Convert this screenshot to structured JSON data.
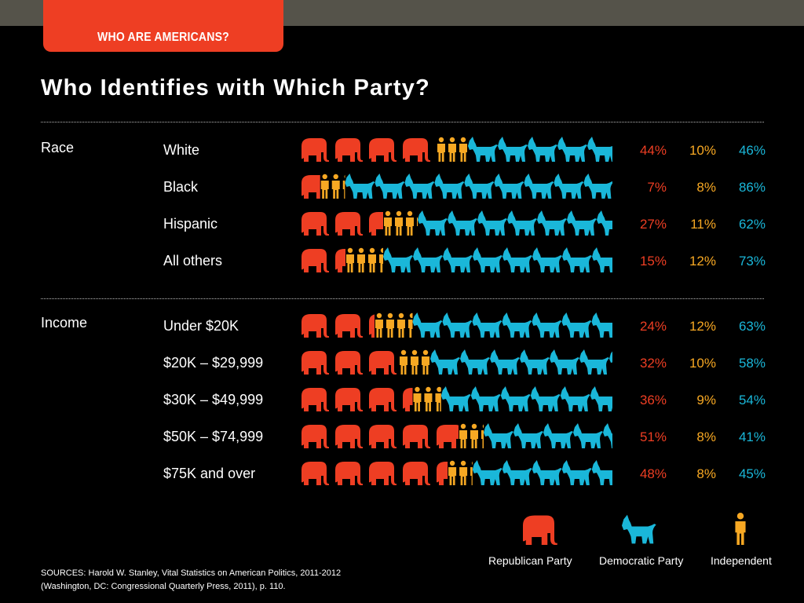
{
  "header": {
    "section_tab": "WHO ARE AMERICANS?",
    "title": "Who Identifies with Which Party?"
  },
  "colors": {
    "republican": "#ee3e23",
    "independent": "#f7a823",
    "democratic": "#1ab7d9",
    "tab": "#ee3e23",
    "topbar": "#55534a",
    "background": "#000000"
  },
  "icons": {
    "republican": "elephant-icon",
    "independent": "person-icon",
    "democratic": "donkey-icon"
  },
  "chart_data": {
    "type": "table",
    "series": [
      "Republican Party",
      "Independent",
      "Democratic Party"
    ],
    "groups": [
      {
        "label": "Race",
        "rows": [
          {
            "label": "White",
            "republican": 44,
            "independent": 10,
            "democratic": 46,
            "display": {
              "republican": "44%",
              "independent": "10%",
              "democratic": "46%"
            }
          },
          {
            "label": "Black",
            "republican": 7,
            "independent": 8,
            "democratic": 86,
            "display": {
              "republican": "7%",
              "independent": "8%",
              "democratic": "86%"
            }
          },
          {
            "label": "Hispanic",
            "republican": 27,
            "independent": 11,
            "democratic": 62,
            "display": {
              "republican": "27%",
              "independent": "11%",
              "democratic": "62%"
            }
          },
          {
            "label": "All others",
            "republican": 15,
            "independent": 12,
            "democratic": 73,
            "display": {
              "republican": "15%",
              "independent": "12%",
              "democratic": "73%"
            }
          }
        ]
      },
      {
        "label": "Income",
        "rows": [
          {
            "label": "Under $20K",
            "republican": 24,
            "independent": 12,
            "democratic": 63,
            "display": {
              "republican": "24%",
              "independent": "12%",
              "democratic": "63%"
            }
          },
          {
            "label": "$20K – $29,999",
            "republican": 32,
            "independent": 10,
            "democratic": 58,
            "display": {
              "republican": "32%",
              "independent": "10%",
              "democratic": "58%"
            }
          },
          {
            "label": "$30K – $49,999",
            "republican": 36,
            "independent": 9,
            "democratic": 54,
            "display": {
              "republican": "36%",
              "independent": "9%",
              "democratic": "54%"
            }
          },
          {
            "label": "$50K – $74,999",
            "republican": 51,
            "independent": 8,
            "democratic": 41,
            "display": {
              "republican": "51%",
              "independent": "8%",
              "democratic": "41%"
            }
          },
          {
            "label": "$75K and over",
            "republican": 48,
            "independent": 8,
            "democratic": 45,
            "display": {
              "republican": "48%",
              "independent": "8%",
              "democratic": "45%"
            }
          }
        ]
      }
    ]
  },
  "legend": {
    "republican": "Republican Party",
    "democratic": "Democratic Party",
    "independent": "Independent"
  },
  "source": {
    "line1": "SOURCES: Harold W. Stanley, Vital Statistics on American Politics, 2011-2012",
    "line2": "(Washington, DC: Congressional Quarterly Press, 2011), p. 110."
  }
}
